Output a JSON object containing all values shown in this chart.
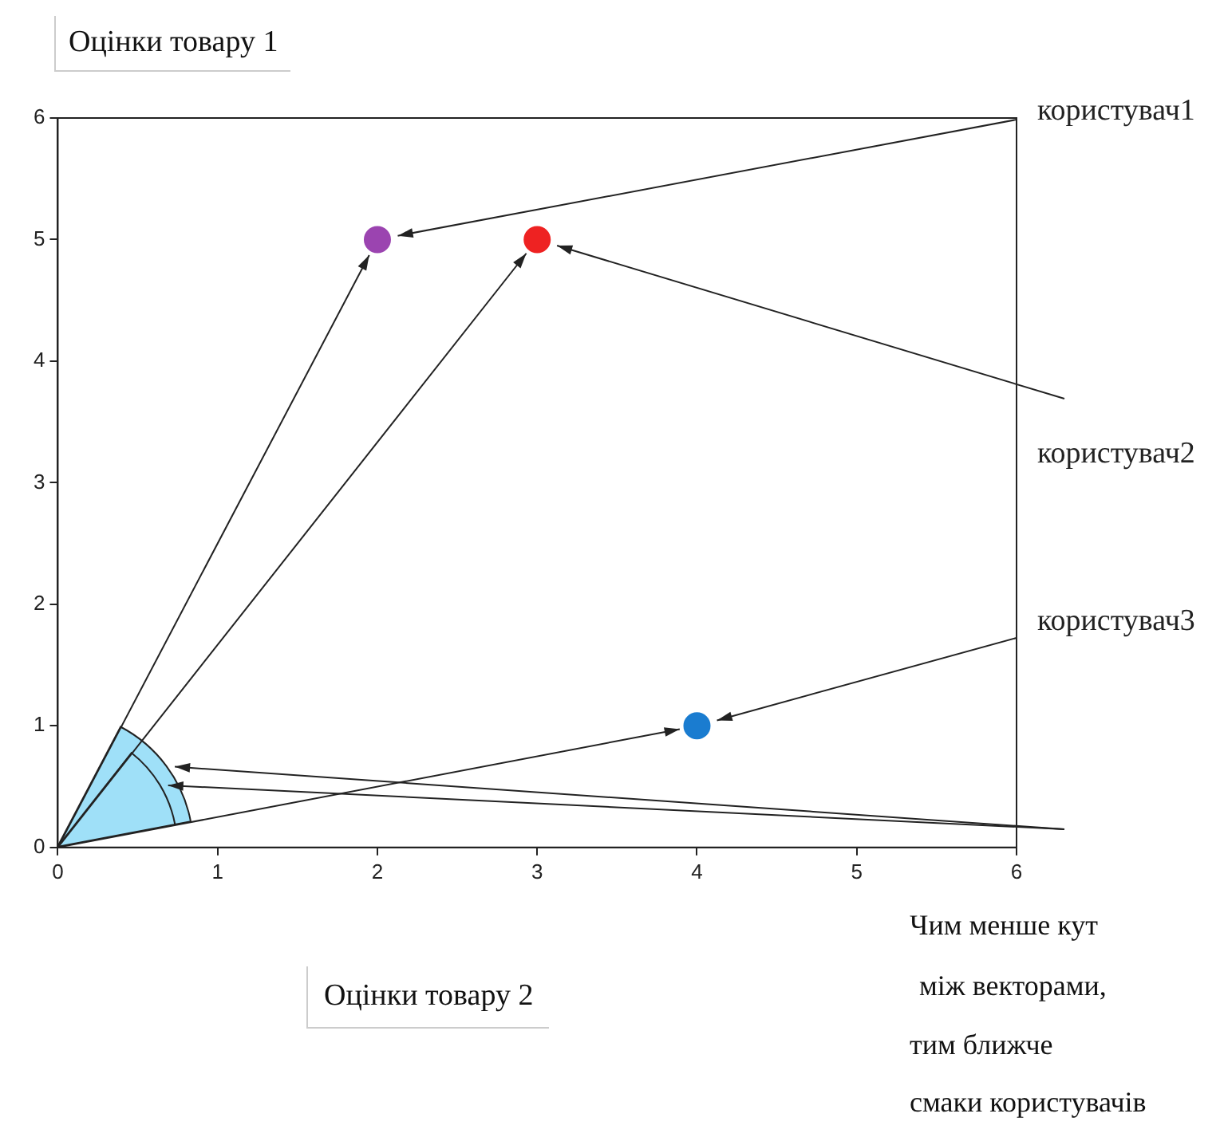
{
  "chart_data": {
    "type": "scatter",
    "xlabel": "Оцінки товару 2",
    "ylabel": "Оцінки товару 1",
    "series": [
      {
        "name": "користувач1",
        "color": "#9b44b0",
        "x": [
          2
        ],
        "values": [
          5
        ]
      },
      {
        "name": "користувач2",
        "color": "#ee2222",
        "x": [
          3
        ],
        "values": [
          5
        ]
      },
      {
        "name": "користувач3",
        "color": "#1a7cd0",
        "x": [
          4
        ],
        "values": [
          1
        ]
      }
    ],
    "xlim": [
      0,
      6
    ],
    "xticks": [
      0,
      1,
      2,
      3,
      4,
      5,
      6
    ],
    "ylim": [
      0,
      6
    ],
    "yticks": [
      0,
      1,
      2,
      3,
      4,
      5,
      6
    ],
    "grid": false,
    "legend": false,
    "marker": "circle",
    "annotations": [
      "Чим менше кут",
      "між векторами,",
      "тим ближче",
      "смаки користувачів"
    ]
  }
}
